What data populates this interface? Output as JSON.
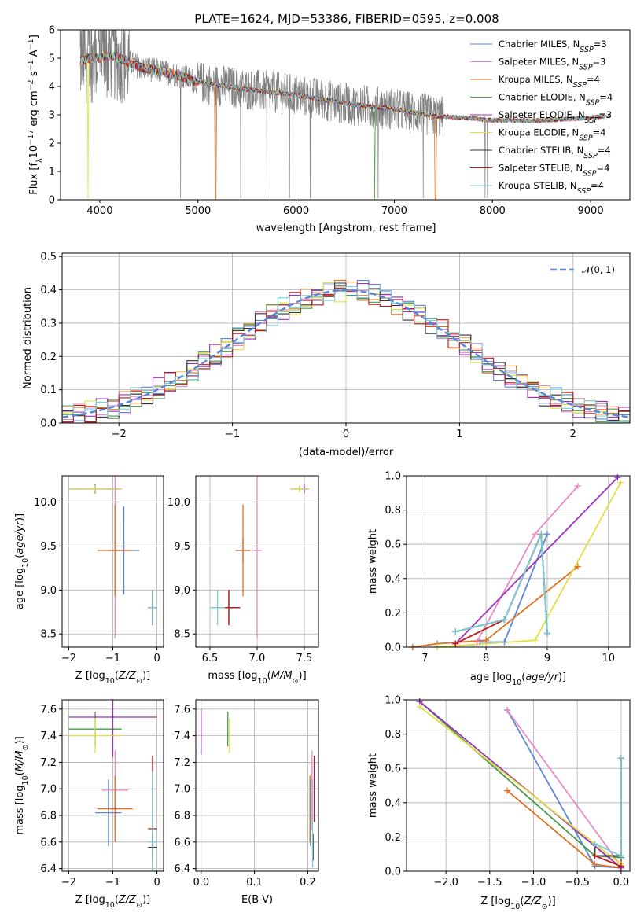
{
  "figure_title": "PLATE=1624, MJD=53386, FIBERID=0595, z=0.008",
  "colors": {
    "Chabrier MILES": "#5b87d6",
    "Salpeter MILES": "#e78ac3",
    "Kroupa MILES": "#e07020",
    "Chabrier ELODIE": "#4a9a4a",
    "Salpeter ELODIE": "#9b30c0",
    "Kroupa ELODIE": "#e0e040",
    "Chabrier STELIB": "#333333",
    "Salpeter STELIB": "#c0181c",
    "Kroupa STELIB": "#78d0dc",
    "data": "#7f7f7f",
    "gauss": "#5b87d6"
  },
  "chart_data": [
    {
      "id": "spectrum",
      "type": "line",
      "title": "PLATE=1624, MJD=53386, FIBERID=0595, z=0.008",
      "xlabel": "wavelength [Angstrom, rest frame]",
      "ylabel": "Flux [f_λ 10^-17 erg cm^-2 s^-1 A^-1]",
      "xlim": [
        3600,
        9400
      ],
      "ylim": [
        0,
        6
      ],
      "xticks": [
        4000,
        5000,
        6000,
        7000,
        8000,
        9000
      ],
      "yticks": [
        0,
        1,
        2,
        3,
        4,
        5,
        6
      ],
      "grid": false,
      "legend_position": "top-right",
      "legend": [
        "Chabrier MILES, N_SSP=3",
        "Salpeter MILES, N_SSP=3",
        "Kroupa MILES, N_SSP=4",
        "Chabrier ELODIE, N_SSP=4",
        "Salpeter ELODIE, N_SSP=3",
        "Kroupa ELODIE, N_SSP=4",
        "Chabrier STELIB, N_SSP=4",
        "Salpeter STELIB, N_SSP=4",
        "Kroupa STELIB, N_SSP=4"
      ],
      "data_x_range": [
        3800,
        9200
      ],
      "model_x_range": [
        3800,
        9150
      ],
      "continuum": {
        "x": [
          3800,
          3900,
          4000,
          4100,
          4200,
          4400,
          4600,
          4800,
          5000,
          5200,
          5500,
          6000,
          6500,
          7000,
          7400,
          7700,
          8000,
          8500,
          9000,
          9150
        ],
        "y": [
          4.9,
          5.0,
          5.0,
          5.1,
          5.0,
          4.7,
          4.55,
          4.4,
          4.15,
          4.05,
          3.9,
          3.7,
          3.4,
          3.2,
          2.95,
          2.9,
          2.8,
          2.8,
          2.9,
          2.95
        ]
      }
    },
    {
      "id": "residuals",
      "type": "histogram",
      "xlabel": "(data-model)/error",
      "ylabel": "Normed distribution",
      "xlim": [
        -2.5,
        2.5
      ],
      "ylim": [
        0,
        0.51
      ],
      "xticks": [
        -2,
        -1,
        0,
        1,
        2
      ],
      "yticks": [
        0.0,
        0.1,
        0.2,
        0.3,
        0.4,
        0.5
      ],
      "grid": true,
      "legend_position": "top-right",
      "legend": [
        "𝒩(0, 1)"
      ],
      "bin_width": 0.1
    },
    {
      "id": "age_vs_Z",
      "type": "errorbar",
      "xlabel": "Z [log10(Z/Z⊙)]",
      "ylabel": "age  [log10(age/yr)]",
      "xlim": [
        -2.15,
        0.15
      ],
      "ylim": [
        8.35,
        10.3
      ],
      "xticks": [
        -2,
        -1,
        0
      ],
      "yticks": [
        8.5,
        9.0,
        9.5,
        10.0
      ],
      "grid": true,
      "points": [
        {
          "m": "Chabrier MILES",
          "x": -0.75,
          "xerr": 0.35,
          "y": 9.45,
          "yerr": 0.5
        },
        {
          "m": "Salpeter MILES",
          "x": -0.95,
          "xerr": 0.15,
          "y": 9.45,
          "yerr": 1.0
        },
        {
          "m": "Kroupa MILES",
          "x": -0.95,
          "xerr": 0.4,
          "y": 9.45,
          "yerr": 0.52
        },
        {
          "m": "Chabrier ELODIE",
          "x": -1.4,
          "xerr": 0.6,
          "y": 10.15,
          "yerr": 0.03
        },
        {
          "m": "Salpeter ELODIE",
          "x": -1.4,
          "xerr": 0.6,
          "y": 10.15,
          "yerr": 0.05
        },
        {
          "m": "Kroupa ELODIE",
          "x": -1.4,
          "xerr": 0.6,
          "y": 10.15,
          "yerr": 0.04
        },
        {
          "m": "Chabrier STELIB",
          "x": -0.1,
          "xerr": 0.1,
          "y": 8.8,
          "yerr": 0.2
        },
        {
          "m": "Salpeter STELIB",
          "x": -0.1,
          "xerr": 0.1,
          "y": 8.8,
          "yerr": 0.2
        },
        {
          "m": "Kroupa STELIB",
          "x": -0.1,
          "xerr": 0.1,
          "y": 8.8,
          "yerr": 0.2
        }
      ]
    },
    {
      "id": "age_vs_mass",
      "type": "errorbar",
      "xlabel": "mass [log10(M/M⊙)]",
      "ylabel": "",
      "xlim": [
        6.35,
        7.65
      ],
      "ylim": [
        8.35,
        10.3
      ],
      "xticks": [
        6.5,
        7.0,
        7.5
      ],
      "yticks": [
        8.5,
        9.0,
        9.5,
        10.0
      ],
      "grid": true,
      "points": [
        {
          "m": "Chabrier MILES",
          "x": 6.85,
          "xerr": 0.08,
          "y": 9.45,
          "yerr": 0.15
        },
        {
          "m": "Salpeter MILES",
          "x": 7.0,
          "xerr": 0.05,
          "y": 9.45,
          "yerr": 1.0
        },
        {
          "m": "Kroupa MILES",
          "x": 6.85,
          "xerr": 0.08,
          "y": 9.45,
          "yerr": 0.52
        },
        {
          "m": "Chabrier ELODIE",
          "x": 7.45,
          "xerr": 0.1,
          "y": 10.15,
          "yerr": 0.03
        },
        {
          "m": "Salpeter ELODIE",
          "x": 7.5,
          "xerr": 0.05,
          "y": 10.15,
          "yerr": 0.05
        },
        {
          "m": "Kroupa ELODIE",
          "x": 7.45,
          "xerr": 0.1,
          "y": 10.15,
          "yerr": 0.04
        },
        {
          "m": "Chabrier STELIB",
          "x": 6.7,
          "xerr": 0.1,
          "y": 8.8,
          "yerr": 0.2
        },
        {
          "m": "Salpeter STELIB",
          "x": 6.7,
          "xerr": 0.12,
          "y": 8.8,
          "yerr": 0.2
        },
        {
          "m": "Kroupa STELIB",
          "x": 6.58,
          "xerr": 0.08,
          "y": 8.8,
          "yerr": 0.2
        }
      ]
    },
    {
      "id": "weight_vs_age",
      "type": "line",
      "xlabel": "age  [log10(age/yr)]",
      "ylabel": "mass weight",
      "xlim": [
        6.7,
        10.35
      ],
      "ylim": [
        0,
        1
      ],
      "xticks": [
        7,
        8,
        9,
        10
      ],
      "yticks": [
        0.0,
        0.2,
        0.4,
        0.6,
        0.8,
        1.0
      ],
      "grid": true,
      "series": [
        {
          "m": "Chabrier MILES",
          "x": [
            7.9,
            8.3,
            9.0
          ],
          "y": [
            0.03,
            0.03,
            0.66
          ]
        },
        {
          "m": "Salpeter MILES",
          "x": [
            7.85,
            8.8,
            9.5
          ],
          "y": [
            0.03,
            0.66,
            0.94
          ]
        },
        {
          "m": "Kroupa MILES",
          "x": [
            6.8,
            7.2,
            8.0,
            9.5
          ],
          "y": [
            0.0,
            0.02,
            0.04,
            0.47
          ]
        },
        {
          "m": "Chabrier ELODIE",
          "x": [
            7.5,
            8.3,
            8.9,
            9.0
          ],
          "y": [
            0.09,
            0.16,
            0.66,
            0.08
          ]
        },
        {
          "m": "Salpeter ELODIE",
          "x": [
            7.5,
            10.15
          ],
          "y": [
            0.02,
            0.99
          ]
        },
        {
          "m": "Kroupa ELODIE",
          "x": [
            7.2,
            8.8,
            10.2
          ],
          "y": [
            0.0,
            0.04,
            0.96
          ]
        },
        {
          "m": "Chabrier STELIB",
          "x": [
            7.5,
            8.3,
            8.9,
            9.0
          ],
          "y": [
            0.09,
            0.16,
            0.66,
            0.08
          ]
        },
        {
          "m": "Salpeter STELIB",
          "x": [
            7.5,
            8.3,
            8.9
          ],
          "y": [
            0.02,
            0.16,
            0.66
          ]
        },
        {
          "m": "Kroupa STELIB",
          "x": [
            7.5,
            8.3,
            8.9,
            9.0
          ],
          "y": [
            0.09,
            0.16,
            0.66,
            0.08
          ]
        }
      ]
    },
    {
      "id": "mass_vs_Z",
      "type": "errorbar",
      "xlabel": "Z [log10(Z/Z⊙)]",
      "ylabel": "mass [log10(M/M⊙)]",
      "xlim": [
        -2.15,
        0.15
      ],
      "ylim": [
        6.38,
        7.67
      ],
      "xticks": [
        -2,
        -1,
        0
      ],
      "yticks": [
        6.4,
        6.6,
        6.8,
        7.0,
        7.2,
        7.4,
        7.6
      ],
      "grid": true,
      "points": [
        {
          "m": "Chabrier MILES",
          "x": -1.1,
          "xerr": 0.3,
          "y": 6.82,
          "yerr": 0.25
        },
        {
          "m": "Salpeter MILES",
          "x": -0.95,
          "xerr": 0.3,
          "y": 6.99,
          "yerr": 0.3
        },
        {
          "m": "Kroupa MILES",
          "x": -0.95,
          "xerr": 0.4,
          "y": 6.85,
          "yerr": 0.25
        },
        {
          "m": "Chabrier ELODIE",
          "x": -1.4,
          "xerr": 0.6,
          "y": 7.45,
          "yerr": 0.13
        },
        {
          "m": "Salpeter ELODIE",
          "x": -1.0,
          "xerr": 1.0,
          "y": 7.54,
          "yerr": 0.3
        },
        {
          "m": "Kroupa ELODIE",
          "x": -1.4,
          "xerr": 0.6,
          "y": 7.4,
          "yerr": 0.13
        },
        {
          "m": "Chabrier STELIB",
          "x": -0.1,
          "xerr": 0.1,
          "y": 6.56,
          "yerr": 0.1
        },
        {
          "m": "Salpeter STELIB",
          "x": -0.1,
          "xerr": 0.1,
          "y": 6.7,
          "yerr": 0.55
        },
        {
          "m": "Kroupa STELIB",
          "x": -0.1,
          "xerr": 0.1,
          "y": 6.6,
          "yerr": 0.53
        }
      ]
    },
    {
      "id": "mass_vs_ebv",
      "type": "errorbar",
      "xlabel": "E(B-V)",
      "ylabel": "",
      "xlim": [
        -0.01,
        0.22
      ],
      "ylim": [
        6.38,
        7.67
      ],
      "xticks": [
        0.0,
        0.1,
        0.2
      ],
      "yticks": [
        6.4,
        6.6,
        6.8,
        7.0,
        7.2,
        7.4,
        7.6
      ],
      "grid": true,
      "points": [
        {
          "m": "Chabrier MILES",
          "x": 0.205,
          "y": 6.82,
          "yerr": 0.25
        },
        {
          "m": "Salpeter MILES",
          "x": 0.208,
          "y": 6.99,
          "yerr": 0.3
        },
        {
          "m": "Kroupa MILES",
          "x": 0.204,
          "y": 6.85,
          "yerr": 0.25
        },
        {
          "m": "Chabrier ELODIE",
          "x": 0.05,
          "y": 7.45,
          "yerr": 0.13
        },
        {
          "m": "Salpeter ELODIE",
          "x": 0.0,
          "y": 7.43,
          "yerr": 0.17
        },
        {
          "m": "Kroupa ELODIE",
          "x": 0.053,
          "y": 7.4,
          "yerr": 0.13
        },
        {
          "m": "Chabrier STELIB",
          "x": 0.21,
          "y": 6.56,
          "yerr": 0.1
        },
        {
          "m": "Salpeter STELIB",
          "x": 0.212,
          "y": 7.0,
          "yerr": 0.25
        },
        {
          "m": "Kroupa STELIB",
          "x": 0.209,
          "y": 6.74,
          "yerr": 0.33
        }
      ]
    },
    {
      "id": "weight_vs_Z",
      "type": "line",
      "xlabel": "Z [log10(Z/Z⊙)]",
      "ylabel": "mass weight",
      "xlim": [
        -2.45,
        0.1
      ],
      "ylim": [
        0,
        1
      ],
      "xticks": [
        -2.0,
        -1.5,
        -1.0,
        -0.5,
        0.0
      ],
      "yticks": [
        0.0,
        0.2,
        0.4,
        0.6,
        0.8,
        1.0
      ],
      "grid": true,
      "series": [
        {
          "m": "Chabrier MILES",
          "x": [
            -1.3,
            -0.3,
            0.0
          ],
          "y": [
            0.94,
            0.03,
            0.02
          ]
        },
        {
          "m": "Salpeter MILES",
          "x": [
            -1.3,
            0.0,
            0.0
          ],
          "y": [
            0.94,
            0.03,
            0.02
          ]
        },
        {
          "m": "Kroupa MILES",
          "x": [
            -1.3,
            -0.3,
            0.0
          ],
          "y": [
            0.47,
            0.04,
            0.02
          ]
        },
        {
          "m": "Chabrier ELODIE",
          "x": [
            -2.3,
            -0.3,
            0.0
          ],
          "y": [
            0.99,
            0.09,
            0.08
          ]
        },
        {
          "m": "Salpeter ELODIE",
          "x": [
            -2.3,
            0.0
          ],
          "y": [
            0.99,
            0.02
          ]
        },
        {
          "m": "Kroupa ELODIE",
          "x": [
            -2.3,
            0.0
          ],
          "y": [
            0.96,
            0.04
          ]
        },
        {
          "m": "Chabrier STELIB",
          "x": [
            -0.3,
            -0.3,
            0.0,
            0.0
          ],
          "y": [
            0.16,
            0.09,
            0.09,
            0.66
          ]
        },
        {
          "m": "Salpeter STELIB",
          "x": [
            -0.3,
            0.0,
            0.0
          ],
          "y": [
            0.09,
            0.03,
            0.66
          ]
        },
        {
          "m": "Kroupa STELIB",
          "x": [
            -0.3,
            0.0,
            0.0
          ],
          "y": [
            0.16,
            0.09,
            0.66
          ]
        }
      ]
    }
  ]
}
